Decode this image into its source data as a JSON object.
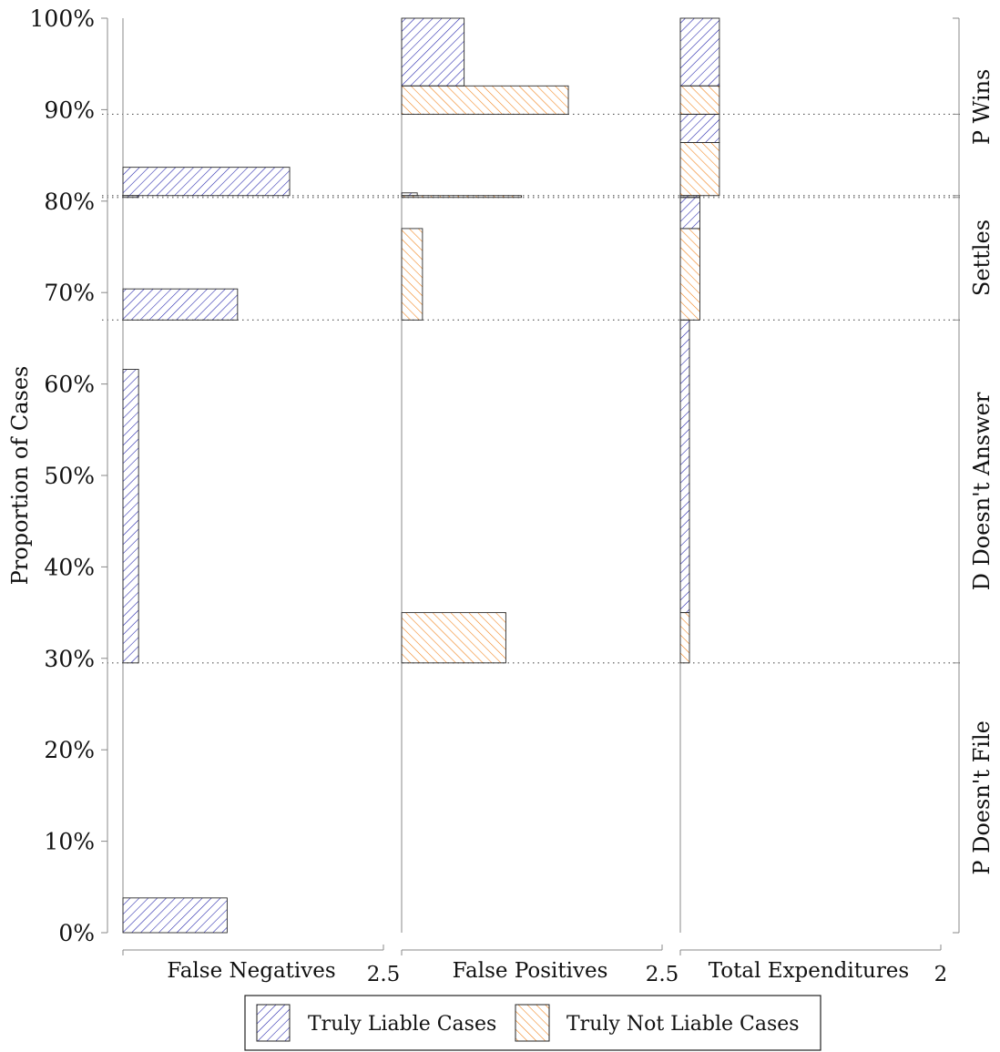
{
  "chart_data": {
    "type": "bar",
    "orientation": "horizontal",
    "ylabel": "Proportion of Cases",
    "yticks": [
      "0%",
      "10%",
      "20%",
      "30%",
      "40%",
      "50%",
      "60%",
      "70%",
      "80%",
      "90%",
      "100%"
    ],
    "ylim": [
      0,
      100
    ],
    "grid": "dotted horizontal lines at stage boundaries",
    "boundaries": [
      29.5,
      67.0,
      80.4,
      80.6,
      89.5
    ],
    "stages": [
      {
        "label": "P Doesn't File",
        "from": 0,
        "to": 29.5
      },
      {
        "label": "D Doesn't Answer",
        "from": 29.5,
        "to": 67.0
      },
      {
        "label": "Settles",
        "from": 67.0,
        "to": 80.6
      },
      {
        "label": "P Wins",
        "from": 80.6,
        "to": 100
      }
    ],
    "legend": {
      "placement": "bottom-center",
      "entries": [
        {
          "label": "Truly Liable Cases",
          "color": "#1c1ca8"
        },
        {
          "label": "Truly Not Liable Cases",
          "color": "#f07d12"
        }
      ]
    },
    "panels": [
      {
        "xlabel": "False Negatives",
        "xmax_label": "2.5",
        "xlim": [
          0,
          2.5
        ],
        "bars": [
          {
            "series": "Truly Liable Cases",
            "y0": 0.0,
            "y1": 3.8,
            "value": 1.0
          },
          {
            "series": "Truly Liable Cases",
            "y0": 29.5,
            "y1": 61.6,
            "value": 0.15
          },
          {
            "series": "Truly Liable Cases",
            "y0": 67.0,
            "y1": 70.4,
            "value": 1.1
          },
          {
            "series": "Truly Liable Cases",
            "y0": 80.4,
            "y1": 80.6,
            "value": 0.15
          },
          {
            "series": "Truly Liable Cases",
            "y0": 80.6,
            "y1": 83.7,
            "value": 1.6
          }
        ]
      },
      {
        "xlabel": "False Positives",
        "xmax_label": "2.5",
        "xlim": [
          0,
          2.5
        ],
        "bars": [
          {
            "series": "Truly Not Liable Cases",
            "y0": 29.5,
            "y1": 35.0,
            "value": 1.0
          },
          {
            "series": "Truly Not Liable Cases",
            "y0": 67.0,
            "y1": 77.0,
            "value": 0.2
          },
          {
            "series": "Truly Not Liable Cases",
            "y0": 80.4,
            "y1": 80.6,
            "value": 1.15
          },
          {
            "series": "Truly Liable Cases",
            "y0": 80.6,
            "y1": 80.9,
            "value": 0.15
          },
          {
            "series": "Truly Not Liable Cases",
            "y0": 89.5,
            "y1": 92.6,
            "value": 1.6
          },
          {
            "series": "Truly Liable Cases",
            "y0": 92.6,
            "y1": 100.0,
            "value": 0.6
          }
        ]
      },
      {
        "xlabel": "Total Expenditures",
        "xmax_label": "2",
        "xlim": [
          0,
          2
        ],
        "bars": [
          {
            "series": "Truly Not Liable Cases",
            "y0": 29.5,
            "y1": 35.0,
            "value": 0.07
          },
          {
            "series": "Truly Liable Cases",
            "y0": 35.0,
            "y1": 67.0,
            "value": 0.07
          },
          {
            "series": "Truly Not Liable Cases",
            "y0": 67.0,
            "y1": 77.0,
            "value": 0.15
          },
          {
            "series": "Truly Liable Cases",
            "y0": 77.0,
            "y1": 80.4,
            "value": 0.15
          },
          {
            "series": "Truly Liable Cases",
            "y0": 80.4,
            "y1": 80.6,
            "value": 0.15
          },
          {
            "series": "Truly Not Liable Cases",
            "y0": 80.6,
            "y1": 86.4,
            "value": 0.3
          },
          {
            "series": "Truly Liable Cases",
            "y0": 86.4,
            "y1": 89.5,
            "value": 0.3
          },
          {
            "series": "Truly Not Liable Cases",
            "y0": 89.5,
            "y1": 92.6,
            "value": 0.3
          },
          {
            "series": "Truly Liable Cases",
            "y0": 92.6,
            "y1": 100.0,
            "value": 0.3
          }
        ]
      }
    ]
  }
}
